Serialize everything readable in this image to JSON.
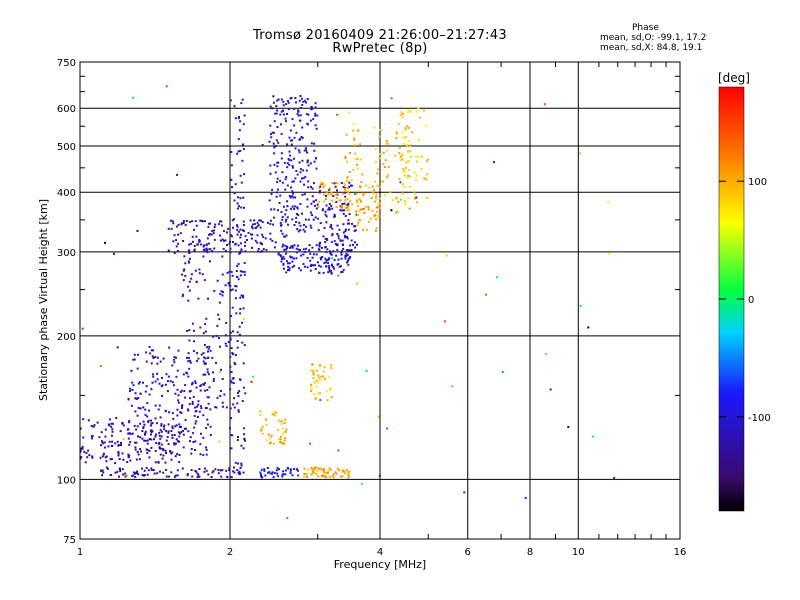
{
  "chart_data": {
    "type": "scatter",
    "title": "Tromsø 20160409 21:26:00–21:27:43",
    "subtitle": "RwPretec (8p)",
    "xlabel": "Frequency [MHz]",
    "ylabel": "Stationary phase Virtual Height [km]",
    "x_scale": "log",
    "y_scale": "log",
    "xlim": [
      1,
      16
    ],
    "ylim": [
      75,
      750
    ],
    "x_ticks": [
      1,
      2,
      4,
      6,
      8,
      10,
      16
    ],
    "x_minor_ticks": [
      3,
      5,
      7,
      9,
      11,
      12,
      13,
      14,
      15
    ],
    "y_ticks": [
      75,
      100,
      200,
      300,
      400,
      500,
      600,
      750
    ],
    "y_minor_ticks": [
      150,
      250,
      350,
      450,
      550,
      650,
      700
    ],
    "grid": true,
    "colorbar": {
      "label": "[deg]",
      "range": [
        -180,
        180
      ],
      "ticks": [
        100,
        0,
        -100
      ]
    },
    "stats_header": "Phase",
    "stats": [
      "mean, sd,O: -99.1, 17.2",
      "mean, sd,X:  84.8, 19.1"
    ],
    "series": [
      {
        "x_range": [
          1.0,
          1.6
        ],
        "y_range": [
          108,
          135
        ],
        "phase": -125,
        "count": 180
      },
      {
        "x_range": [
          1.25,
          1.85
        ],
        "y_range": [
          112,
          190
        ],
        "phase": -115,
        "count": 220
      },
      {
        "x_range": [
          1.6,
          2.1
        ],
        "y_range": [
          140,
          330
        ],
        "phase": -110,
        "count": 160
      },
      {
        "x_range": [
          2.0,
          2.15
        ],
        "y_range": [
          100,
          640
        ],
        "phase": -110,
        "count": 120
      },
      {
        "x_range": [
          1.5,
          2.6
        ],
        "y_range": [
          298,
          350
        ],
        "phase": -120,
        "count": 150
      },
      {
        "x_range": [
          2.4,
          3.0
        ],
        "y_range": [
          330,
          640
        ],
        "phase": -105,
        "count": 240
      },
      {
        "x_range": [
          2.5,
          3.5
        ],
        "y_range": [
          270,
          310
        ],
        "phase": -105,
        "count": 140
      },
      {
        "x_range": [
          3.0,
          3.6
        ],
        "y_range": [
          300,
          420
        ],
        "phase": -115,
        "count": 120
      },
      {
        "x_range": [
          1.1,
          2.1
        ],
        "y_range": [
          101,
          106
        ],
        "phase": -125,
        "count": 90
      },
      {
        "x_range": [
          2.3,
          2.8
        ],
        "y_range": [
          101,
          106
        ],
        "phase": -85,
        "count": 40
      },
      {
        "x_range": [
          2.8,
          3.5
        ],
        "y_range": [
          101,
          106
        ],
        "phase": 105,
        "count": 60
      },
      {
        "x_range": [
          2.3,
          2.6
        ],
        "y_range": [
          118,
          140
        ],
        "phase": 100,
        "count": 40
      },
      {
        "x_range": [
          2.9,
          3.2
        ],
        "y_range": [
          145,
          175
        ],
        "phase": 90,
        "count": 40
      },
      {
        "x_range": [
          3.0,
          3.5
        ],
        "y_range": [
          370,
          420
        ],
        "phase": 100,
        "count": 40
      },
      {
        "x_range": [
          3.4,
          3.7
        ],
        "y_range": [
          360,
          600
        ],
        "phase": 95,
        "count": 40
      },
      {
        "x_range": [
          3.6,
          4.0
        ],
        "y_range": [
          330,
          420
        ],
        "phase": 105,
        "count": 50
      },
      {
        "x_range": [
          3.9,
          4.6
        ],
        "y_range": [
          350,
          560
        ],
        "phase": 95,
        "count": 60
      },
      {
        "x_range": [
          4.4,
          5.0
        ],
        "y_range": [
          380,
          600
        ],
        "phase": 85,
        "count": 60
      },
      {
        "x_range": [
          1.0,
          12.0
        ],
        "y_range": [
          80,
          700
        ],
        "phase": 0,
        "count": 60
      }
    ]
  }
}
